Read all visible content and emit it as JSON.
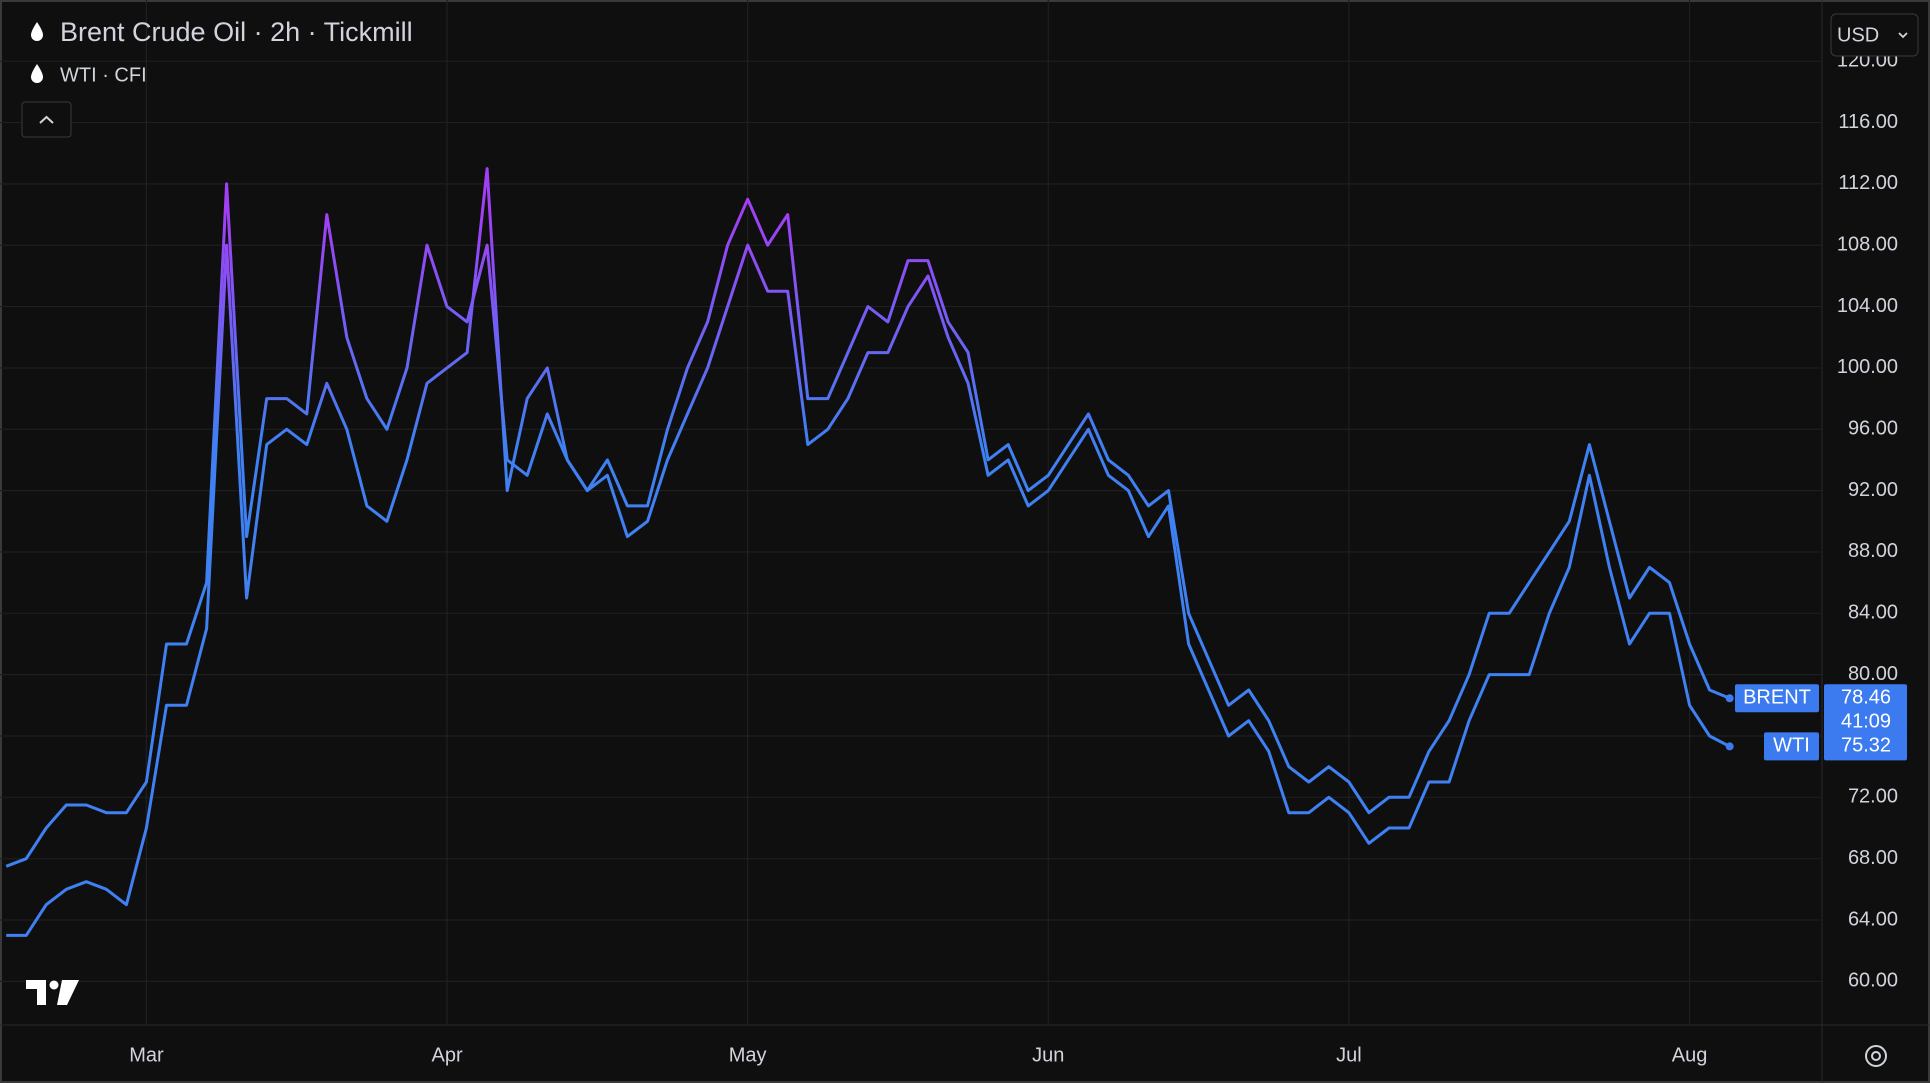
{
  "chart_data": {
    "type": "line",
    "title": "Brent Crude Oil · 2h · Tickmill",
    "currency": "USD",
    "countdown": "41:09",
    "categories": [
      null,
      null,
      null,
      null,
      null,
      null,
      null,
      "Mar",
      null,
      null,
      null,
      null,
      null,
      null,
      null,
      null,
      null,
      null,
      null,
      null,
      null,
      null,
      "Apr",
      null,
      null,
      null,
      null,
      null,
      null,
      null,
      null,
      null,
      null,
      null,
      null,
      null,
      null,
      "May",
      null,
      null,
      null,
      null,
      null,
      null,
      null,
      null,
      null,
      null,
      null,
      null,
      null,
      null,
      "Jun",
      null,
      null,
      null,
      null,
      null,
      null,
      null,
      null,
      null,
      null,
      null,
      null,
      null,
      null,
      "Jul",
      null,
      null,
      null,
      null,
      null,
      null,
      null,
      null,
      null,
      null,
      null,
      null,
      null,
      null,
      null,
      null,
      "Aug",
      null,
      null
    ],
    "series": [
      {
        "name": "Brent Crude Oil · 2h · Tickmill",
        "last_label": "BRENT",
        "values": [
          67.5,
          68,
          70,
          71.5,
          71.5,
          71,
          71,
          73,
          82,
          82,
          86,
          112,
          89,
          98,
          98,
          97,
          110,
          102,
          98,
          96,
          100,
          108,
          104,
          103,
          108,
          94,
          93,
          97,
          94,
          92,
          94,
          91,
          91,
          96,
          100,
          103,
          108,
          111,
          108,
          110,
          98,
          98,
          101,
          104,
          103,
          107,
          107,
          103,
          101,
          94,
          95,
          92,
          93,
          95,
          97,
          94,
          93,
          91,
          92,
          84,
          81,
          78,
          79,
          77,
          74,
          73,
          74,
          73,
          71,
          72,
          72,
          75,
          77,
          80,
          84,
          84,
          86,
          88,
          90,
          95,
          90,
          85,
          87,
          86,
          82,
          79,
          78.46
        ]
      },
      {
        "name": "WTI · CFI",
        "last_label": "WTI",
        "values": [
          63,
          63,
          65,
          66,
          66.5,
          66,
          65,
          70,
          78,
          78,
          83,
          108,
          85,
          95,
          96,
          95,
          99,
          96,
          91,
          90,
          94,
          99,
          100,
          101,
          113,
          92,
          98,
          100,
          94,
          92,
          93,
          89,
          90,
          94,
          97,
          100,
          104,
          108,
          105,
          105,
          95,
          96,
          98,
          101,
          101,
          104,
          106,
          102,
          99,
          93,
          94,
          91,
          92,
          94,
          96,
          93,
          92,
          89,
          91,
          82,
          79,
          76,
          77,
          75,
          71,
          71,
          72,
          71,
          69,
          70,
          70,
          73,
          73,
          77,
          80,
          80,
          80,
          84,
          87,
          93,
          87,
          82,
          84,
          84,
          78,
          76,
          75.32
        ]
      }
    ],
    "line_gradient": [
      {
        "value": 110,
        "color": "#a23ff5"
      },
      {
        "value": 95,
        "color": "#3f80f2"
      }
    ],
    "label_color": "#3c7bef",
    "ylim": [
      57.35,
      123.6
    ],
    "yticks": [
      {
        "value": 60,
        "label": "60.00"
      },
      {
        "value": 64,
        "label": "64.00"
      },
      {
        "value": 68,
        "label": "68.00"
      },
      {
        "value": 72,
        "label": "72.00"
      },
      {
        "value": 76,
        "label": "76.00"
      },
      {
        "value": 80,
        "label": "80.00"
      },
      {
        "value": 84,
        "label": "84.00"
      },
      {
        "value": 88,
        "label": "88.00"
      },
      {
        "value": 92,
        "label": "92.00"
      },
      {
        "value": 96,
        "label": "96.00"
      },
      {
        "value": 100,
        "label": "100.00"
      },
      {
        "value": 104,
        "label": "104.00"
      },
      {
        "value": 108,
        "label": "108.00"
      },
      {
        "value": 112,
        "label": "112.00"
      },
      {
        "value": 116,
        "label": "116.00"
      },
      {
        "value": 120,
        "label": "120.00"
      }
    ],
    "grid": true
  }
}
